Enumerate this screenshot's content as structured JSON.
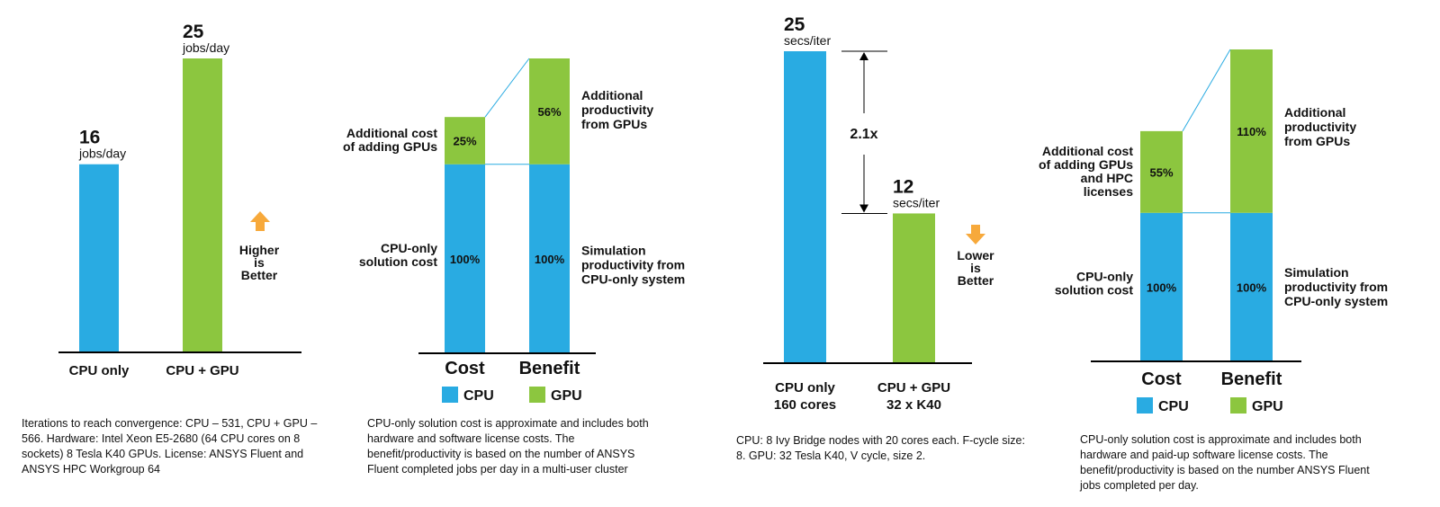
{
  "colors": {
    "cpu": "#29abe2",
    "gpu": "#8cc63f",
    "arrow": "#f7a93b",
    "axis": "#000000",
    "connector": "#29abe2"
  },
  "chart_data": [
    {
      "type": "bar",
      "categories": [
        "CPU only",
        "CPU + GPU"
      ],
      "values": [
        16,
        25
      ],
      "value_labels": [
        "16",
        "25"
      ],
      "unit_label": "jobs/day",
      "badge": [
        "Higher",
        "is",
        "Better"
      ],
      "badge_icon": "arrow-up-icon",
      "ylim": [
        0,
        25
      ],
      "note": "Iterations to reach convergence: CPU – 531,   CPU + GPU – 566. Hardware: Intel Xeon E5-2680 (64 CPU cores on 8 sockets) 8 Tesla K40 GPUs. License: ANSYS Fluent and ANSYS HPC Workgroup 64"
    },
    {
      "type": "bar",
      "stacked": true,
      "categories": [
        "Cost",
        "Benefit"
      ],
      "series": [
        {
          "name": "CPU",
          "values": [
            100,
            100
          ],
          "labels": [
            "100%",
            "100%"
          ]
        },
        {
          "name": "GPU",
          "values": [
            25,
            56
          ],
          "labels": [
            "25%",
            "56%"
          ]
        }
      ],
      "annotations": {
        "cost_cpu": [
          "CPU-only",
          "solution cost"
        ],
        "cost_gpu": [
          "Additional cost",
          "of adding GPUs"
        ],
        "benefit_gpu": [
          "Additional",
          "productivity",
          "from GPUs"
        ],
        "benefit_cpu": [
          "Simulation",
          "productivity from",
          "CPU-only system"
        ]
      },
      "ylim": [
        0,
        156
      ],
      "legend": [
        "CPU",
        "GPU"
      ],
      "note": "CPU-only solution cost is approximate and includes both hardware and software license costs. The benefit/productivity is based on the number of ANSYS Fluent completed jobs per day in a multi-user cluster"
    },
    {
      "type": "bar",
      "categories": [
        "CPU only",
        "CPU + GPU"
      ],
      "category_sublabels": [
        "160 cores",
        "32 x K40"
      ],
      "values": [
        25,
        12
      ],
      "value_labels": [
        "25",
        "12"
      ],
      "unit_label": "secs/iter",
      "ratio_label": "2.1x",
      "badge": [
        "Lower",
        "is",
        "Better"
      ],
      "badge_icon": "arrow-down-icon",
      "ylim": [
        0,
        25
      ],
      "note": "CPU:  8 Ivy Bridge nodes with 20 cores each. F-cycle size: 8. GPU: 32 Tesla K40, V cycle, size 2."
    },
    {
      "type": "bar",
      "stacked": true,
      "categories": [
        "Cost",
        "Benefit"
      ],
      "series": [
        {
          "name": "CPU",
          "values": [
            100,
            100
          ],
          "labels": [
            "100%",
            "100%"
          ]
        },
        {
          "name": "GPU",
          "values": [
            55,
            110
          ],
          "labels": [
            "55%",
            "110%"
          ]
        }
      ],
      "annotations": {
        "cost_cpu": [
          "CPU-only",
          "solution cost"
        ],
        "cost_gpu": [
          "Additional cost",
          "of adding GPUs",
          "and HPC",
          "licenses"
        ],
        "benefit_gpu": [
          "Additional",
          "productivity",
          "from GPUs"
        ],
        "benefit_cpu": [
          "Simulation",
          "productivity from",
          "CPU-only system"
        ]
      },
      "ylim": [
        0,
        210
      ],
      "legend": [
        "CPU",
        "GPU"
      ],
      "note": "CPU-only solution cost is approximate and includes both hardware and paid-up software license costs. The benefit/productivity is based on the number ANSYS Fluent jobs completed per day."
    }
  ]
}
